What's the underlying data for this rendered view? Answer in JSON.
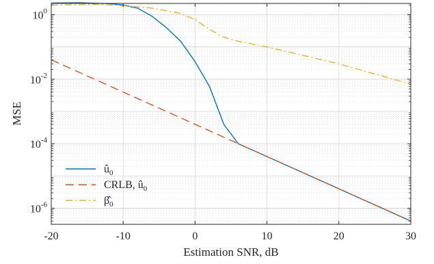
{
  "chart_data": {
    "type": "line",
    "xlabel": "Estimation SNR, dB",
    "ylabel": "MSE",
    "xlim": [
      -20,
      30
    ],
    "ylim_log10": [
      -6.5,
      0.35
    ],
    "yscale": "log",
    "grid": "major and minor, dotted",
    "legend_position": "bottom-left",
    "x_ticks": [
      -20,
      -10,
      0,
      10,
      20,
      30
    ],
    "x_tick_labels": [
      "-20",
      "-10",
      "0",
      "10",
      "20",
      "30"
    ],
    "y_ticks_log10": [
      0,
      -2,
      -4,
      -6
    ],
    "y_tick_labels": [
      {
        "base": "10",
        "exp": "0"
      },
      {
        "base": "10",
        "exp": "-2"
      },
      {
        "base": "10",
        "exp": "-4"
      },
      {
        "base": "10",
        "exp": "-6"
      }
    ],
    "series": [
      {
        "name": "û0",
        "legend_main": "û",
        "legend_sub": "0",
        "color": "#0072BD",
        "style": "solid",
        "x": [
          -20,
          -16,
          -12,
          -10,
          -8,
          -6,
          -4,
          -2,
          0,
          2,
          4,
          6,
          10,
          20,
          30
        ],
        "y": [
          2.3,
          2.35,
          2.2,
          2.0,
          1.6,
          0.9,
          0.4,
          0.15,
          0.035,
          0.006,
          0.0004,
          0.0001,
          4e-05,
          4e-06,
          4e-07
        ]
      },
      {
        "name": "CRLB, û0",
        "legend_main": "CRLB, û",
        "legend_sub": "0",
        "color": "#D95319",
        "style": "dashed",
        "x": [
          -20,
          30
        ],
        "y": [
          0.04,
          4e-07
        ]
      },
      {
        "name": "β̂0",
        "legend_main": "β̂",
        "legend_sub": "0",
        "color": "#EDB120",
        "style": "dashdot",
        "x": [
          -20,
          -14,
          -10,
          -6,
          -2,
          0,
          2,
          4,
          6,
          10,
          20,
          30
        ],
        "y": [
          2.0,
          2.1,
          1.9,
          1.6,
          1.1,
          0.7,
          0.35,
          0.2,
          0.15,
          0.1,
          0.03,
          0.007
        ]
      }
    ]
  }
}
